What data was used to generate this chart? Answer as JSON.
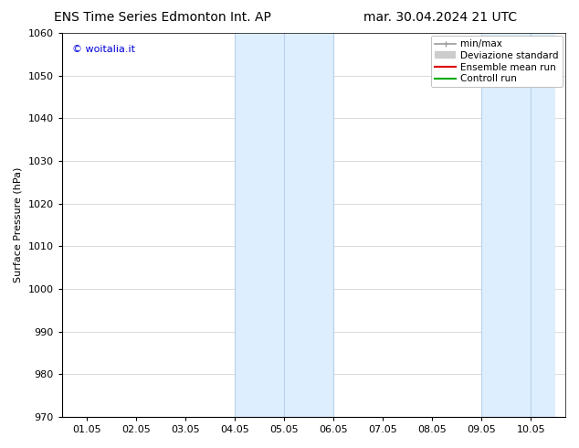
{
  "title_left": "ENS Time Series Edmonton Int. AP",
  "title_right": "mar. 30.04.2024 21 UTC",
  "ylabel": "Surface Pressure (hPa)",
  "watermark": "© woitalia.it",
  "watermark_color": "#0000dd",
  "ylim": [
    970,
    1060
  ],
  "yticks": [
    970,
    980,
    990,
    1000,
    1010,
    1020,
    1030,
    1040,
    1050,
    1060
  ],
  "xtick_labels": [
    "01.05",
    "02.05",
    "03.05",
    "04.05",
    "05.05",
    "06.05",
    "07.05",
    "08.05",
    "09.05",
    "10.05"
  ],
  "xtick_positions": [
    0,
    1,
    2,
    3,
    4,
    5,
    6,
    7,
    8,
    9
  ],
  "xlim_min": -0.5,
  "xlim_max": 9.7,
  "shaded_regions": [
    {
      "xmin": 3.0,
      "xmax": 5.0,
      "color": "#ddeeff"
    },
    {
      "xmin": 8.0,
      "xmax": 9.5,
      "color": "#ddeeff"
    }
  ],
  "vertical_lines_dark": [
    {
      "x": 3.0
    },
    {
      "x": 4.0
    },
    {
      "x": 5.0
    },
    {
      "x": 8.0
    },
    {
      "x": 9.0
    }
  ],
  "vline_color": "#b8d0e8",
  "legend_entries": [
    {
      "label": "min/max",
      "color": "#999999",
      "lw": 1.2,
      "style": "caps"
    },
    {
      "label": "Deviazione standard",
      "color": "#cccccc",
      "lw": 7,
      "style": "thick"
    },
    {
      "label": "Ensemble mean run",
      "color": "#dd0000",
      "lw": 1.5,
      "style": "line"
    },
    {
      "label": "Controll run",
      "color": "#00aa00",
      "lw": 1.5,
      "style": "line"
    }
  ],
  "background_color": "#ffffff",
  "grid_color": "#cccccc",
  "spine_color": "#000000",
  "title_fontsize": 10,
  "label_fontsize": 8,
  "tick_fontsize": 8,
  "watermark_fontsize": 8,
  "legend_fontsize": 7.5
}
